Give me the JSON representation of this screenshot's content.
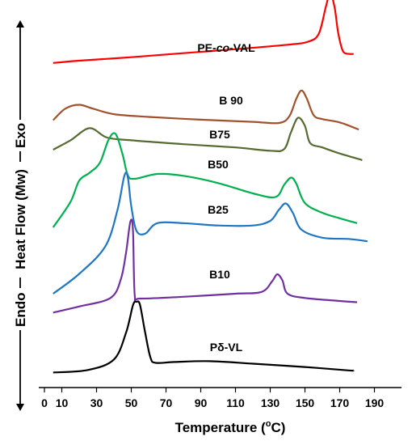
{
  "chart_data": {
    "type": "line",
    "xlabel": "Temperature (",
    "xlabel_sup": "o",
    "xlabel_tail": "C)",
    "ylabel": {
      "endo": "Endo",
      "heat_flow": "Heat Flow (Mw)",
      "exo": "Exo"
    },
    "xlim": [
      0,
      195
    ],
    "x_ticks": [
      0,
      10,
      30,
      50,
      70,
      90,
      110,
      130,
      150,
      170,
      190
    ],
    "y_ticks": [],
    "grid": false,
    "legend": "none",
    "series": [
      {
        "label": "PE-",
        "label_italic": "co",
        "label_tail": "-VAL",
        "color": "#ff0000",
        "points": [
          [
            5,
            0.4
          ],
          [
            20,
            0.9
          ],
          [
            50,
            1.7
          ],
          [
            80,
            2.6
          ],
          [
            110,
            3.5
          ],
          [
            140,
            4.5
          ],
          [
            152,
            5.2
          ],
          [
            158,
            7.0
          ],
          [
            162,
            13.0
          ],
          [
            164.5,
            16.0
          ],
          [
            167,
            13.0
          ],
          [
            169,
            7.5
          ],
          [
            171,
            4.0
          ],
          [
            173,
            2.6
          ],
          [
            178,
            2.4
          ]
        ]
      },
      {
        "label": "B 90",
        "color": "#a0522d",
        "points": [
          [
            5,
            0.8
          ],
          [
            12,
            2.9
          ],
          [
            20,
            3.6
          ],
          [
            28,
            2.9
          ],
          [
            40,
            1.9
          ],
          [
            60,
            1.4
          ],
          [
            90,
            0.9
          ],
          [
            120,
            0.5
          ],
          [
            135,
            0.3
          ],
          [
            141,
            1.5
          ],
          [
            145,
            4.7
          ],
          [
            148,
            6.2
          ],
          [
            151,
            4.8
          ],
          [
            155,
            1.7
          ],
          [
            160,
            1.0
          ],
          [
            170,
            0.4
          ],
          [
            181,
            -0.9
          ]
        ]
      },
      {
        "label": "B75",
        "color": "#556b2f",
        "points": [
          [
            5,
            0.3
          ],
          [
            15,
            2.0
          ],
          [
            26,
            4.2
          ],
          [
            36,
            2.5
          ],
          [
            50,
            2.0
          ],
          [
            80,
            1.3
          ],
          [
            110,
            0.7
          ],
          [
            130,
            0.1
          ],
          [
            138,
            0.4
          ],
          [
            142,
            3.5
          ],
          [
            146,
            6.1
          ],
          [
            150,
            4.6
          ],
          [
            153,
            1.5
          ],
          [
            160,
            0.7
          ],
          [
            170,
            -0.4
          ],
          [
            183,
            -1.6
          ]
        ]
      },
      {
        "label": "B50",
        "color": "#00b050",
        "points": [
          [
            5,
            -1.2
          ],
          [
            15,
            3.0
          ],
          [
            20,
            6.5
          ],
          [
            26,
            7.8
          ],
          [
            32,
            9.5
          ],
          [
            37,
            13.3
          ],
          [
            41,
            14.2
          ],
          [
            45,
            10.8
          ],
          [
            48,
            7.4
          ],
          [
            52,
            6.8
          ],
          [
            65,
            7.6
          ],
          [
            80,
            7.3
          ],
          [
            100,
            6.1
          ],
          [
            120,
            4.4
          ],
          [
            133,
            3.8
          ],
          [
            138,
            5.8
          ],
          [
            142,
            7.0
          ],
          [
            145,
            6.0
          ],
          [
            150,
            2.8
          ],
          [
            160,
            1.2
          ],
          [
            170,
            0.3
          ],
          [
            180,
            -0.5
          ]
        ]
      },
      {
        "label": "B25",
        "color": "#1f77c4",
        "points": [
          [
            5,
            -1.8
          ],
          [
            20,
            1.6
          ],
          [
            35,
            6.3
          ],
          [
            42,
            12.5
          ],
          [
            46,
            18.4
          ],
          [
            48,
            18.2
          ],
          [
            50,
            13.2
          ],
          [
            53,
            9.0
          ],
          [
            58,
            8.5
          ],
          [
            65,
            10.3
          ],
          [
            80,
            10.3
          ],
          [
            100,
            9.9
          ],
          [
            120,
            9.9
          ],
          [
            130,
            10.7
          ],
          [
            135,
            12.6
          ],
          [
            139,
            13.7
          ],
          [
            143,
            12.1
          ],
          [
            148,
            9.2
          ],
          [
            160,
            7.8
          ],
          [
            175,
            7.6
          ],
          [
            186,
            7.2
          ]
        ]
      },
      {
        "label": "B10",
        "color": "#7030a0",
        "points": [
          [
            5,
            -1.5
          ],
          [
            20,
            -0.5
          ],
          [
            38,
            0.9
          ],
          [
            44,
            4.0
          ],
          [
            47,
            8.4
          ],
          [
            49.5,
            13.5
          ],
          [
            51,
            12.0
          ],
          [
            52,
            1.3
          ],
          [
            55,
            0.8
          ],
          [
            80,
            1.1
          ],
          [
            110,
            1.6
          ],
          [
            125,
            1.9
          ],
          [
            131,
            3.6
          ],
          [
            134,
            4.8
          ],
          [
            137,
            3.8
          ],
          [
            140,
            1.6
          ],
          [
            150,
            0.9
          ],
          [
            170,
            0.4
          ],
          [
            180,
            0.2
          ]
        ]
      },
      {
        "label": "Pδ-VL",
        "color": "#000000",
        "points": [
          [
            5,
            0.5
          ],
          [
            25,
            1.1
          ],
          [
            40,
            3.6
          ],
          [
            47,
            10.0
          ],
          [
            51,
            16.5
          ],
          [
            53,
            17.3
          ],
          [
            55,
            16.6
          ],
          [
            58,
            10.0
          ],
          [
            61,
            4.1
          ],
          [
            64,
            2.8
          ],
          [
            75,
            3.0
          ],
          [
            95,
            3.2
          ],
          [
            120,
            2.6
          ],
          [
            150,
            1.8
          ],
          [
            175,
            1.0
          ],
          [
            178,
            1.0
          ]
        ]
      }
    ]
  }
}
